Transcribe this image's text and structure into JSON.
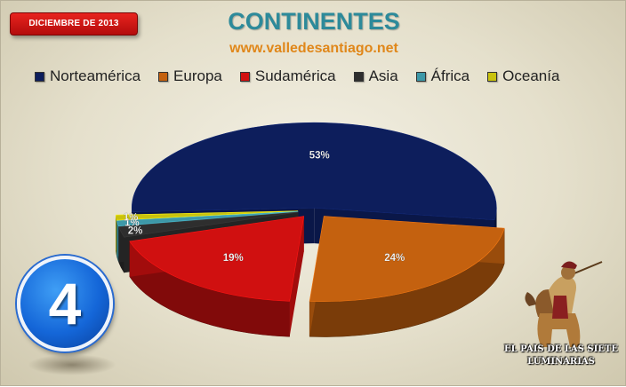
{
  "header": {
    "date_badge": "DICIEMBRE DE 2013",
    "title": "CONTINENTES",
    "subtitle": "www.valledesantiago.net"
  },
  "badge": {
    "number": "4"
  },
  "logo": {
    "text": "EL PAIS DE LAS SIETE LUMINARIAS"
  },
  "chart_data": {
    "type": "pie",
    "title": "CONTINENTES",
    "legend_position": "top",
    "slices": [
      {
        "label": "Norteamérica",
        "value": 53,
        "display": "53%",
        "color": "#0d1e5c"
      },
      {
        "label": "Europa",
        "value": 24,
        "display": "24%",
        "color": "#c4610f"
      },
      {
        "label": "Sudamérica",
        "value": 19,
        "display": "19%",
        "color": "#d01010"
      },
      {
        "label": "Asia",
        "value": 2,
        "display": "2%",
        "color": "#2e2e2e"
      },
      {
        "label": "África",
        "value": 1,
        "display": "1%",
        "color": "#3d98a8"
      },
      {
        "label": "Oceanía",
        "value": 1,
        "display": "1%",
        "color": "#c9c20e"
      }
    ]
  }
}
